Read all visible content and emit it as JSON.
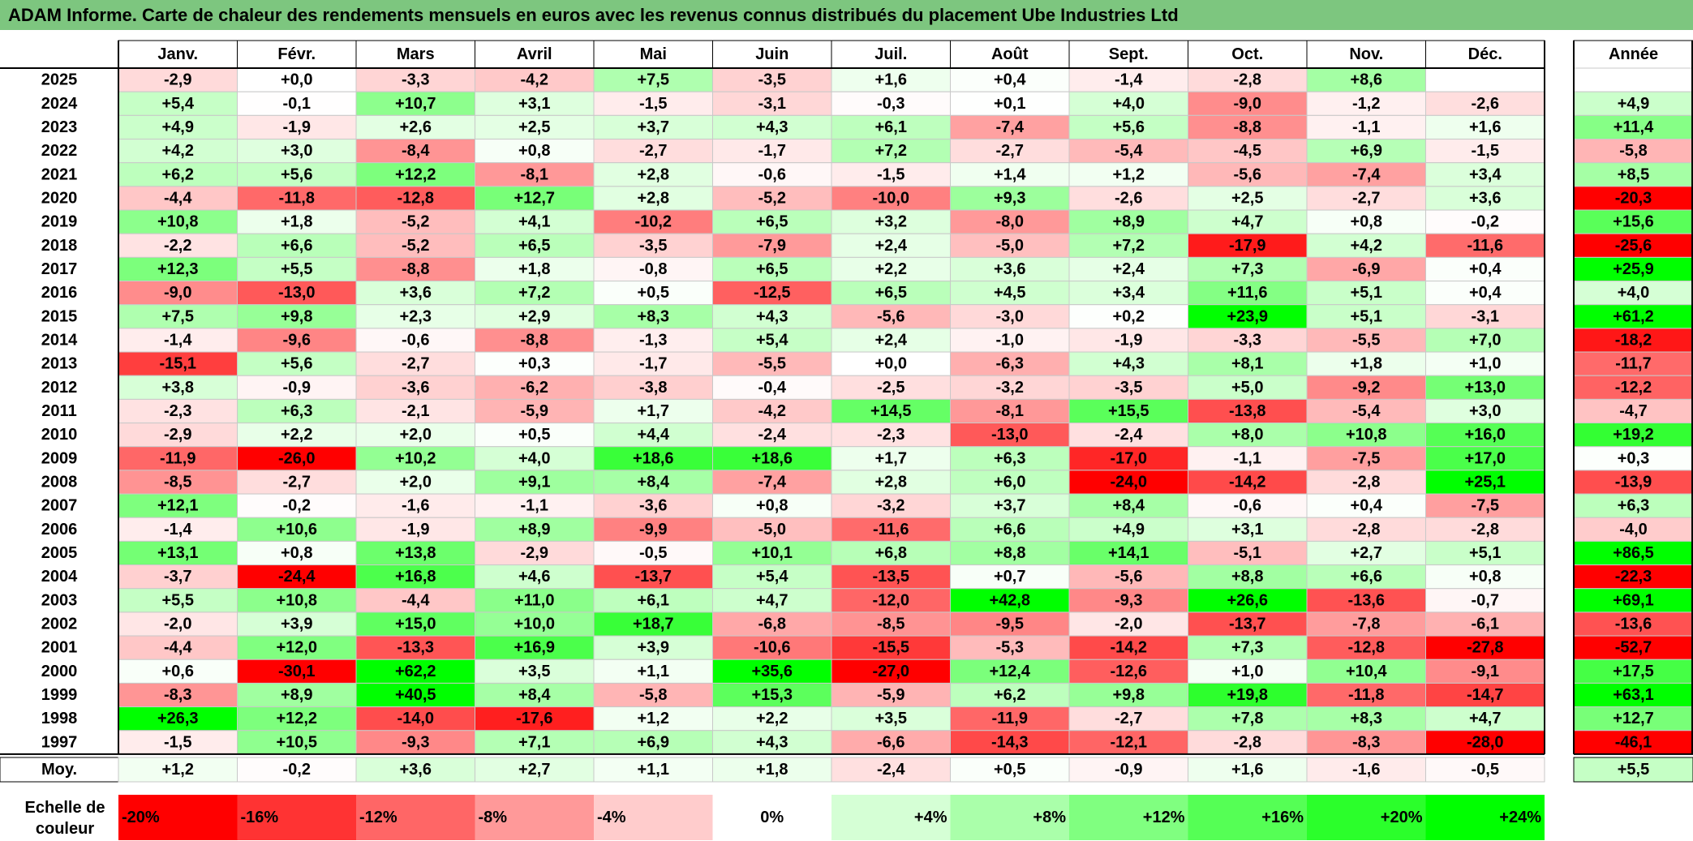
{
  "title": "ADAM Informe. Carte de chaleur des rendements mensuels en euros avec les revenus connus distribués du placement Ube Industries Ltd",
  "chart_data": {
    "type": "heatmap",
    "months": [
      "Janv.",
      "Févr.",
      "Mars",
      "Avril",
      "Mai",
      "Juin",
      "Juil.",
      "Août",
      "Sept.",
      "Oct.",
      "Nov.",
      "Déc."
    ],
    "annual_header": "Année",
    "rows": [
      {
        "year": "2025",
        "values": [
          -2.9,
          0.0,
          -3.3,
          -4.2,
          7.5,
          -3.5,
          1.6,
          0.4,
          -1.4,
          -2.8,
          8.6,
          null
        ],
        "annual": null
      },
      {
        "year": "2024",
        "values": [
          5.4,
          -0.1,
          10.7,
          3.1,
          -1.5,
          -3.1,
          -0.3,
          0.1,
          4.0,
          -9.0,
          -1.2,
          -2.6
        ],
        "annual": 4.9
      },
      {
        "year": "2023",
        "values": [
          4.9,
          -1.9,
          2.6,
          2.5,
          3.7,
          4.3,
          6.1,
          -7.4,
          5.6,
          -8.8,
          -1.1,
          1.6
        ],
        "annual": 11.4
      },
      {
        "year": "2022",
        "values": [
          4.2,
          3.0,
          -8.4,
          0.8,
          -2.7,
          -1.7,
          7.2,
          -2.7,
          -5.4,
          -4.5,
          6.9,
          -1.5
        ],
        "annual": -5.8
      },
      {
        "year": "2021",
        "values": [
          6.2,
          5.6,
          12.2,
          -8.1,
          2.8,
          -0.6,
          -1.5,
          1.4,
          1.2,
          -5.6,
          -7.4,
          3.4
        ],
        "annual": 8.5
      },
      {
        "year": "2020",
        "values": [
          -4.4,
          -11.8,
          -12.8,
          12.7,
          2.8,
          -5.2,
          -10.0,
          9.3,
          -2.6,
          2.5,
          -2.7,
          3.6
        ],
        "annual": -20.3
      },
      {
        "year": "2019",
        "values": [
          10.8,
          1.8,
          -5.2,
          4.1,
          -10.2,
          6.5,
          3.2,
          -8.0,
          8.9,
          4.7,
          0.8,
          -0.2
        ],
        "annual": 15.6
      },
      {
        "year": "2018",
        "values": [
          -2.2,
          6.6,
          -5.2,
          6.5,
          -3.5,
          -7.9,
          2.4,
          -5.0,
          7.2,
          -17.9,
          4.2,
          -11.6
        ],
        "annual": -25.6
      },
      {
        "year": "2017",
        "values": [
          12.3,
          5.5,
          -8.8,
          1.8,
          -0.8,
          6.5,
          2.2,
          3.6,
          2.4,
          7.3,
          -6.9,
          0.4
        ],
        "annual": 25.9
      },
      {
        "year": "2016",
        "values": [
          -9.0,
          -13.0,
          3.6,
          7.2,
          0.5,
          -12.5,
          6.5,
          4.5,
          3.4,
          11.6,
          5.1,
          0.4
        ],
        "annual": 4.0
      },
      {
        "year": "2015",
        "values": [
          7.5,
          9.8,
          2.3,
          2.9,
          8.3,
          4.3,
          -5.6,
          -3.0,
          0.2,
          23.9,
          5.1,
          -3.1
        ],
        "annual": 61.2
      },
      {
        "year": "2014",
        "values": [
          -1.4,
          -9.6,
          -0.6,
          -8.8,
          -1.3,
          5.4,
          2.4,
          -1.0,
          -1.9,
          -3.3,
          -5.5,
          7.0
        ],
        "annual": -18.2
      },
      {
        "year": "2013",
        "values": [
          -15.1,
          5.6,
          -2.7,
          0.3,
          -1.7,
          -5.5,
          0.0,
          -6.3,
          4.3,
          8.1,
          1.8,
          1.0
        ],
        "annual": -11.7
      },
      {
        "year": "2012",
        "values": [
          3.8,
          -0.9,
          -3.6,
          -6.2,
          -3.8,
          -0.4,
          -2.5,
          -3.2,
          -3.5,
          5.0,
          -9.2,
          13.0
        ],
        "annual": -12.2
      },
      {
        "year": "2011",
        "values": [
          -2.3,
          6.3,
          -2.1,
          -5.9,
          1.7,
          -4.2,
          14.5,
          -8.1,
          15.5,
          -13.8,
          -5.4,
          3.0
        ],
        "annual": -4.7
      },
      {
        "year": "2010",
        "values": [
          -2.9,
          2.2,
          2.0,
          0.5,
          4.4,
          -2.4,
          -2.3,
          -13.0,
          -2.4,
          8.0,
          10.8,
          16.0
        ],
        "annual": 19.2
      },
      {
        "year": "2009",
        "values": [
          -11.9,
          -26.0,
          10.2,
          4.0,
          18.6,
          18.6,
          1.7,
          6.3,
          -17.0,
          -1.1,
          -7.5,
          17.0
        ],
        "annual": 0.3
      },
      {
        "year": "2008",
        "values": [
          -8.5,
          -2.7,
          2.0,
          9.1,
          8.4,
          -7.4,
          2.8,
          6.0,
          -24.0,
          -14.2,
          -2.8,
          25.1
        ],
        "annual": -13.9
      },
      {
        "year": "2007",
        "values": [
          12.1,
          -0.2,
          -1.6,
          -1.1,
          -3.6,
          0.8,
          -3.2,
          3.7,
          8.4,
          -0.6,
          0.4,
          -7.5
        ],
        "annual": 6.3
      },
      {
        "year": "2006",
        "values": [
          -1.4,
          10.6,
          -1.9,
          8.9,
          -9.9,
          -5.0,
          -11.6,
          6.6,
          4.9,
          3.1,
          -2.8,
          -2.8
        ],
        "annual": -4.0
      },
      {
        "year": "2005",
        "values": [
          13.1,
          0.8,
          13.8,
          -2.9,
          -0.5,
          10.1,
          6.8,
          8.8,
          14.1,
          -5.1,
          2.7,
          5.1
        ],
        "annual": 86.5
      },
      {
        "year": "2004",
        "values": [
          -3.7,
          -24.4,
          16.8,
          4.6,
          -13.7,
          5.4,
          -13.5,
          0.7,
          -5.6,
          8.8,
          6.6,
          0.8
        ],
        "annual": -22.3
      },
      {
        "year": "2003",
        "values": [
          5.5,
          10.8,
          -4.4,
          11.0,
          6.1,
          4.7,
          -12.0,
          42.8,
          -9.3,
          26.6,
          -13.6,
          -0.7
        ],
        "annual": 69.1
      },
      {
        "year": "2002",
        "values": [
          -2.0,
          3.9,
          15.0,
          10.0,
          18.7,
          -6.8,
          -8.5,
          -9.5,
          -2.0,
          -13.7,
          -7.8,
          -6.1
        ],
        "annual": -13.6
      },
      {
        "year": "2001",
        "values": [
          -4.4,
          12.0,
          -13.3,
          16.9,
          3.9,
          -10.6,
          -15.5,
          -5.3,
          -14.2,
          7.3,
          -12.8,
          -27.8
        ],
        "annual": -52.7
      },
      {
        "year": "2000",
        "values": [
          0.6,
          -30.1,
          62.2,
          3.5,
          1.1,
          35.6,
          -27.0,
          12.4,
          -12.6,
          1.0,
          10.4,
          -9.1
        ],
        "annual": 17.5
      },
      {
        "year": "1999",
        "values": [
          -8.3,
          8.9,
          40.5,
          8.4,
          -5.8,
          15.3,
          -5.9,
          6.2,
          9.8,
          19.8,
          -11.8,
          -14.7
        ],
        "annual": 63.1
      },
      {
        "year": "1998",
        "values": [
          26.3,
          12.2,
          -14.0,
          -17.6,
          1.2,
          2.2,
          3.5,
          -11.9,
          -2.7,
          7.8,
          8.3,
          4.7
        ],
        "annual": 12.7
      },
      {
        "year": "1997",
        "values": [
          -1.5,
          10.5,
          -9.3,
          7.1,
          6.9,
          4.3,
          -6.6,
          -14.3,
          -12.1,
          -2.8,
          -8.3,
          -28.0
        ],
        "annual": -46.1
      }
    ],
    "average": {
      "label": "Moy.",
      "values": [
        1.2,
        -0.2,
        3.6,
        2.7,
        1.1,
        1.8,
        -2.4,
        0.5,
        -0.9,
        1.6,
        -1.6,
        -0.5
      ],
      "annual": 5.5
    },
    "color_scale": {
      "label_line1": "Echelle de",
      "label_line2": "couleur",
      "steps": [
        "-20%",
        "-16%",
        "-12%",
        "-8%",
        "-4%",
        "0%",
        "+4%",
        "+8%",
        "+12%",
        "+16%",
        "+20%",
        "+24%"
      ],
      "step_values": [
        -20,
        -16,
        -12,
        -8,
        -4,
        0,
        4,
        8,
        12,
        16,
        20,
        24
      ]
    },
    "colors": {
      "negative_max": "#ff0000",
      "neutral": "#ffffff",
      "positive_max": "#00ff00",
      "title_bar": "#7dc67f"
    }
  }
}
